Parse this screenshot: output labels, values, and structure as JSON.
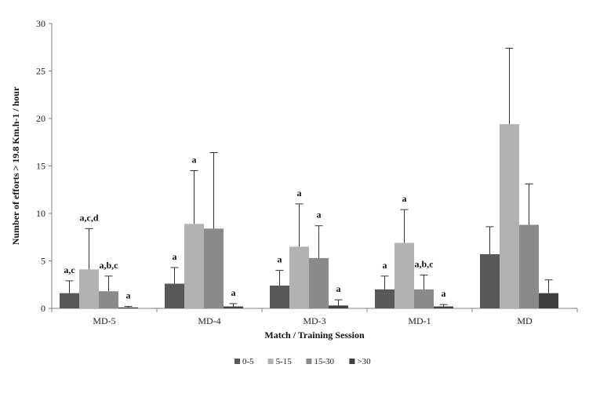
{
  "chart_data": {
    "type": "bar",
    "title": "",
    "xlabel": "Match / Training Session",
    "ylabel": "Number of efforts > 19.8 Km.h-1 / hour",
    "ylim": [
      0,
      30
    ],
    "yticks": [
      0,
      5,
      10,
      15,
      20,
      25,
      30
    ],
    "categories": [
      "MD-5",
      "MD-4",
      "MD-3",
      "MD-1",
      "MD"
    ],
    "legend_position": "bottom",
    "grid": false,
    "series": [
      {
        "name": "0-5",
        "color": "#595959",
        "values": [
          1.6,
          2.6,
          2.4,
          2.0,
          5.7
        ],
        "errors": [
          1.3,
          1.7,
          1.6,
          1.4,
          2.9
        ]
      },
      {
        "name": "5-15",
        "color": "#b2b2b2",
        "values": [
          4.1,
          8.9,
          6.5,
          6.9,
          19.4
        ],
        "errors": [
          4.3,
          5.6,
          4.5,
          3.5,
          8.0
        ]
      },
      {
        "name": "15-30",
        "color": "#8a8a8a",
        "values": [
          1.8,
          8.4,
          5.3,
          2.0,
          8.8
        ],
        "errors": [
          1.6,
          8.0,
          3.4,
          1.5,
          4.3
        ]
      },
      {
        "name": ">30",
        "color": "#404040",
        "values": [
          0.1,
          0.2,
          0.3,
          0.2,
          1.6
        ],
        "errors": [
          0.1,
          0.3,
          0.6,
          0.2,
          1.4
        ]
      }
    ],
    "annotations": [
      [
        "a,c",
        "a,c,d",
        "a,b,c",
        "a"
      ],
      [
        "a",
        "a",
        "",
        "a"
      ],
      [
        "a",
        "a",
        "a",
        "a"
      ],
      [
        "a",
        "a",
        "a,b,c",
        "a"
      ],
      [
        "",
        "",
        "",
        ""
      ]
    ]
  }
}
